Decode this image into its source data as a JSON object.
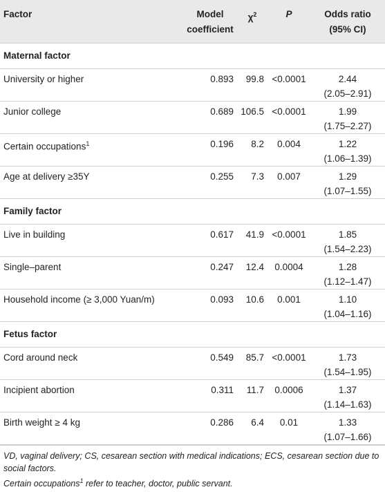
{
  "header": {
    "factor": "Factor",
    "coefficient": "Model coefficient",
    "chi": {
      "text": "χ",
      "sup": "2"
    },
    "p": "P",
    "odds": "Odds ratio (95% CI)"
  },
  "sections": [
    {
      "title": "Maternal factor",
      "rows": [
        {
          "factor": "University or higher",
          "coefficient": "0.893",
          "chi": "99.8",
          "p": "<0.0001",
          "or": "2.44",
          "ci": "(2.05–2.91)"
        },
        {
          "factor": "Junior college",
          "coefficient": "0.689",
          "chi": "106.5",
          "p": "<0.0001",
          "or": "1.99",
          "ci": "(1.75–2.27)"
        },
        {
          "factor": "Certain occupations",
          "sup": "1",
          "coefficient": "0.196",
          "chi": "8.2",
          "p": "0.004",
          "or": "1.22",
          "ci": "(1.06–1.39)"
        },
        {
          "factor": "Age at delivery ≥35Y",
          "coefficient": "0.255",
          "chi": "7.3",
          "p": "0.007",
          "or": "1.29",
          "ci": "(1.07–1.55)"
        }
      ]
    },
    {
      "title": "Family factor",
      "rows": [
        {
          "factor": "Live in building",
          "coefficient": "0.617",
          "chi": "41.9",
          "p": "<0.0001",
          "or": "1.85",
          "ci": "(1.54–2.23)"
        },
        {
          "factor": "Single–parent",
          "coefficient": "0.247",
          "chi": "12.4",
          "p": "0.0004",
          "or": "1.28",
          "ci": "(1.12–1.47)"
        },
        {
          "factor": "Household income (≥ 3,000 Yuan/m)",
          "coefficient": "0.093",
          "chi": "10.6",
          "p": "0.001",
          "or": "1.10",
          "ci": "(1.04–1.16)"
        }
      ]
    },
    {
      "title": "Fetus factor",
      "rows": [
        {
          "factor": "Cord around neck",
          "coefficient": "0.549",
          "chi": "85.7",
          "p": "<0.0001",
          "or": "1.73",
          "ci": "(1.54–1.95)"
        },
        {
          "factor": "Incipient abortion",
          "coefficient": "0.311",
          "chi": "11.7",
          "p": "0.0006",
          "or": "1.37",
          "ci": "(1.14–1.63)"
        },
        {
          "factor": "Birth weight ≥ 4 kg",
          "coefficient": "0.286",
          "chi": "6.4",
          "p": "0.01",
          "or": "1.33",
          "ci": "(1.07–1.66)"
        }
      ]
    }
  ],
  "footnotes": [
    {
      "text": "VD, vaginal delivery; CS, cesarean section with medical indications; ECS, cesarean section due to social factors."
    },
    {
      "text": "Certain occupations",
      "sup": "1",
      "rest": " refer to teacher, doctor, public servant."
    }
  ]
}
